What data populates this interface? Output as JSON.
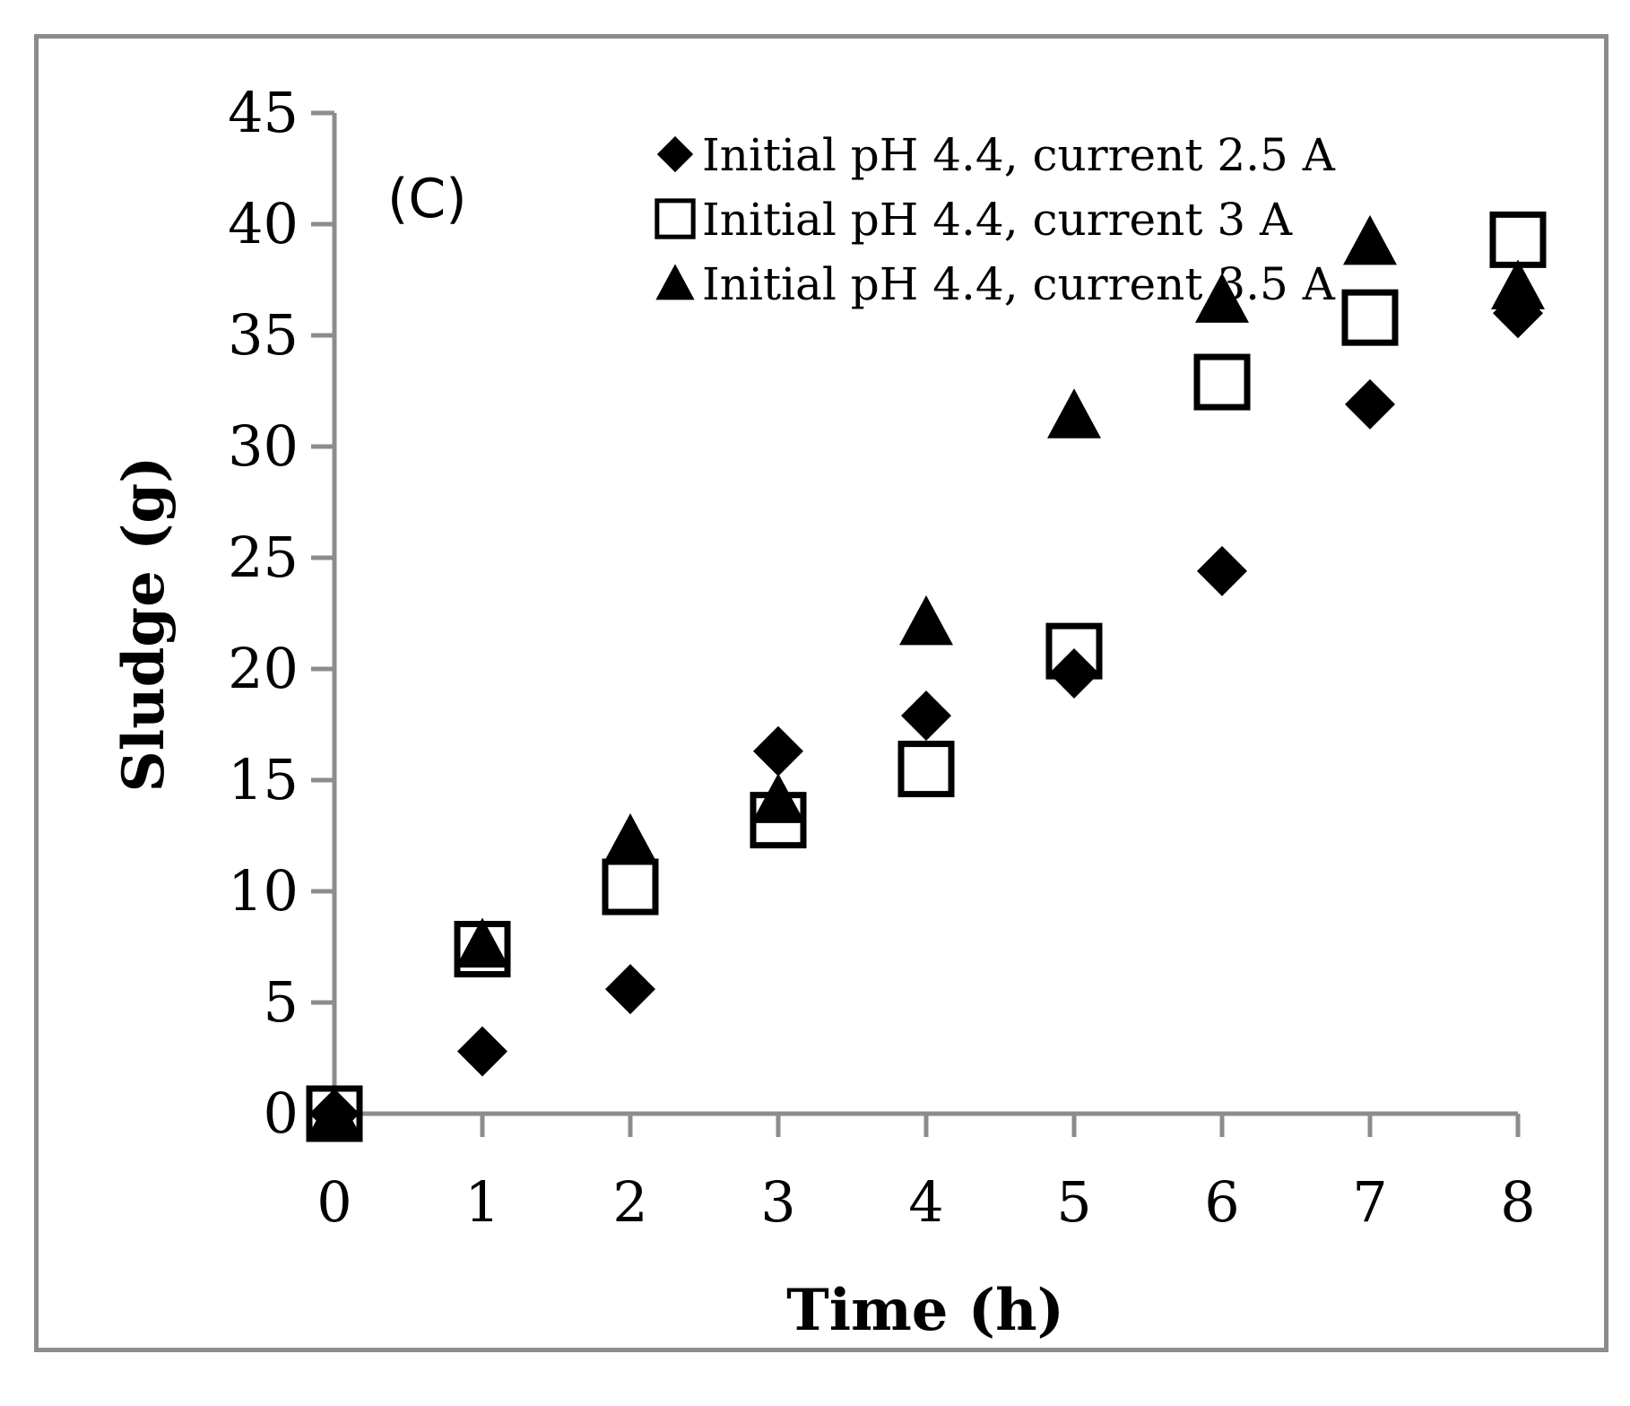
{
  "chart_data": {
    "type": "scatter",
    "panel_label": "(C)",
    "xlabel": "Time (h)",
    "ylabel": "Sludge (g)",
    "xlim": [
      0,
      8
    ],
    "ylim": [
      0,
      45
    ],
    "xticks": [
      "0",
      "1",
      "2",
      "3",
      "4",
      "5",
      "6",
      "7",
      "8"
    ],
    "yticks": [
      "0",
      "5",
      "10",
      "15",
      "20",
      "25",
      "30",
      "35",
      "40",
      "45"
    ],
    "grid": false,
    "legend_position": "top-right",
    "x": [
      0,
      1,
      2,
      3,
      4,
      5,
      6,
      7,
      8
    ],
    "series": [
      {
        "name": "Initial pH 4.4, current 2.5 A",
        "marker": "diamond",
        "color": "#000000",
        "values": [
          0,
          2.8,
          5.6,
          16.3,
          17.9,
          19.8,
          24.4,
          31.9,
          36.0
        ]
      },
      {
        "name": "Initial pH 4.4, current 3 A",
        "marker": "open-square",
        "color": "#000000",
        "values": [
          0,
          7.4,
          10.2,
          13.2,
          15.5,
          20.8,
          32.9,
          35.8,
          39.3
        ]
      },
      {
        "name": "Initial pH 4.4, current 3.5 A",
        "marker": "triangle",
        "color": "#000000",
        "values": [
          0,
          7.6,
          12.3,
          14.1,
          22.1,
          31.4,
          36.6,
          39.2,
          37.2
        ]
      }
    ]
  }
}
